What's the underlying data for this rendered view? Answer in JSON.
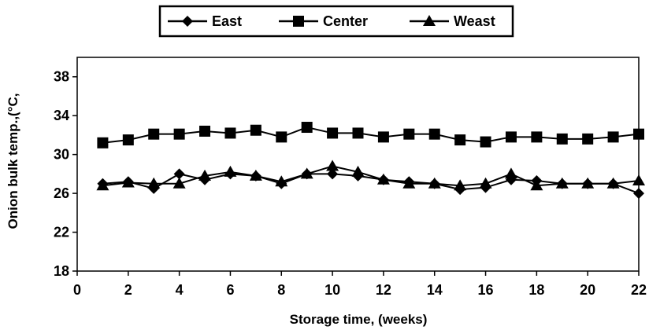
{
  "chart_data": {
    "type": "line",
    "title": "",
    "xlabel": "Storage time, (weeks)",
    "ylabel": "Onion bulk temp.,(°C,",
    "xlim": [
      0,
      22
    ],
    "ylim": [
      18,
      40
    ],
    "xticks": [
      0,
      2,
      4,
      6,
      8,
      10,
      12,
      14,
      16,
      18,
      20,
      22
    ],
    "yticks": [
      18,
      22,
      26,
      30,
      34,
      38
    ],
    "grid": false,
    "legend": "top-center",
    "x": [
      1,
      2,
      3,
      4,
      5,
      6,
      7,
      8,
      9,
      10,
      11,
      12,
      13,
      14,
      15,
      16,
      17,
      18,
      19,
      20,
      21,
      22
    ],
    "series": [
      {
        "name": "East",
        "marker": "diamond",
        "color": "#000000",
        "values": [
          27,
          27.2,
          26.5,
          28,
          27.4,
          28,
          27.8,
          27,
          28,
          28,
          27.8,
          27.4,
          27.2,
          27,
          26.4,
          26.6,
          27.4,
          27.3,
          27,
          27,
          27,
          26
        ]
      },
      {
        "name": "Center",
        "marker": "square",
        "color": "#000000",
        "values": [
          31.2,
          31.5,
          32.1,
          32.1,
          32.4,
          32.2,
          32.5,
          31.8,
          32.8,
          32.2,
          32.2,
          31.8,
          32.1,
          32.1,
          31.5,
          31.3,
          31.8,
          31.8,
          31.6,
          31.6,
          31.8,
          32.1
        ]
      },
      {
        "name": "Weast",
        "marker": "triangle",
        "color": "#000000",
        "values": [
          26.8,
          27.1,
          27,
          27,
          27.8,
          28.2,
          27.8,
          27.2,
          28,
          28.8,
          28.2,
          27.4,
          27,
          27,
          26.8,
          27,
          28,
          26.8,
          27,
          27,
          27,
          27.3
        ]
      }
    ]
  }
}
